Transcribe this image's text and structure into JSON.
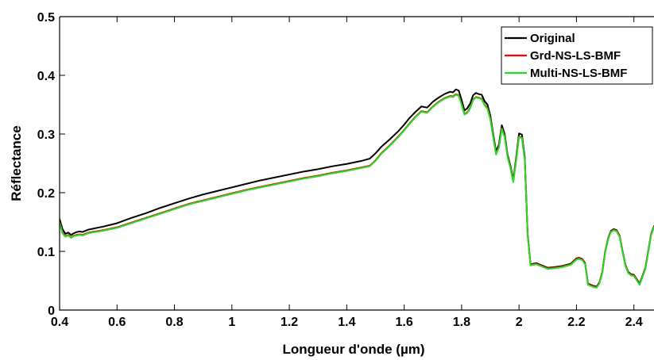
{
  "chart_data": {
    "type": "line",
    "title": "",
    "xlabel": "Longueur d'onde (µm)",
    "ylabel": "Réflectance",
    "xlim": [
      0.4,
      2.47
    ],
    "ylim": [
      0,
      0.5
    ],
    "xticks": [
      0.4,
      0.6,
      0.8,
      1.0,
      1.2,
      1.4,
      1.6,
      1.8,
      2.0,
      2.2,
      2.4
    ],
    "xtick_labels": [
      "0.4",
      "0.6",
      "0.8",
      "1",
      "1.2",
      "1.4",
      "1.6",
      "1.8",
      "2",
      "2.2",
      "2.4"
    ],
    "yticks": [
      0,
      0.1,
      0.2,
      0.3,
      0.4,
      0.5
    ],
    "ytick_labels": [
      "0",
      "0.1",
      "0.2",
      "0.3",
      "0.4",
      "0.5"
    ],
    "grid": false,
    "legend_position": "top-right",
    "series": [
      {
        "name": "Original",
        "color": "#000000",
        "x": [
          0.4,
          0.41,
          0.42,
          0.43,
          0.44,
          0.45,
          0.46,
          0.47,
          0.48,
          0.5,
          0.55,
          0.6,
          0.65,
          0.7,
          0.75,
          0.8,
          0.85,
          0.9,
          0.95,
          1.0,
          1.05,
          1.1,
          1.15,
          1.2,
          1.25,
          1.3,
          1.35,
          1.4,
          1.45,
          1.48,
          1.5,
          1.52,
          1.55,
          1.58,
          1.6,
          1.62,
          1.64,
          1.66,
          1.68,
          1.7,
          1.72,
          1.74,
          1.76,
          1.77,
          1.78,
          1.79,
          1.8,
          1.81,
          1.82,
          1.83,
          1.84,
          1.85,
          1.86,
          1.87,
          1.88,
          1.89,
          1.9,
          1.91,
          1.92,
          1.93,
          1.94,
          1.95,
          1.96,
          1.97,
          1.98,
          1.99,
          2.0,
          2.01,
          2.02,
          2.03,
          2.04,
          2.06,
          2.08,
          2.1,
          2.12,
          2.15,
          2.18,
          2.2,
          2.21,
          2.22,
          2.23,
          2.24,
          2.25,
          2.26,
          2.27,
          2.28,
          2.29,
          2.3,
          2.31,
          2.32,
          2.33,
          2.34,
          2.35,
          2.36,
          2.37,
          2.38,
          2.39,
          2.4,
          2.42,
          2.44,
          2.46,
          2.47
        ],
        "y": [
          0.155,
          0.138,
          0.13,
          0.132,
          0.128,
          0.131,
          0.133,
          0.134,
          0.133,
          0.137,
          0.142,
          0.148,
          0.157,
          0.165,
          0.174,
          0.182,
          0.19,
          0.197,
          0.203,
          0.209,
          0.215,
          0.221,
          0.226,
          0.231,
          0.236,
          0.24,
          0.245,
          0.249,
          0.254,
          0.258,
          0.267,
          0.278,
          0.291,
          0.305,
          0.316,
          0.328,
          0.338,
          0.347,
          0.345,
          0.355,
          0.362,
          0.368,
          0.372,
          0.371,
          0.376,
          0.374,
          0.358,
          0.34,
          0.344,
          0.352,
          0.366,
          0.37,
          0.368,
          0.367,
          0.356,
          0.35,
          0.331,
          0.3,
          0.27,
          0.282,
          0.315,
          0.3,
          0.265,
          0.246,
          0.222,
          0.26,
          0.301,
          0.299,
          0.26,
          0.13,
          0.078,
          0.08,
          0.076,
          0.072,
          0.073,
          0.075,
          0.079,
          0.088,
          0.089,
          0.087,
          0.08,
          0.045,
          0.043,
          0.041,
          0.04,
          0.047,
          0.065,
          0.1,
          0.122,
          0.135,
          0.138,
          0.136,
          0.127,
          0.102,
          0.078,
          0.065,
          0.061,
          0.06,
          0.045,
          0.072,
          0.13,
          0.143
        ],
        "label_x": 0.4
      },
      {
        "name": "Grd-NS-LS-BMF",
        "color": "#ff0000",
        "x": [
          0.4,
          0.41,
          0.42,
          0.43,
          0.44,
          0.45,
          0.46,
          0.47,
          0.48,
          0.5,
          0.55,
          0.6,
          0.65,
          0.7,
          0.75,
          0.8,
          0.85,
          0.9,
          0.95,
          1.0,
          1.05,
          1.1,
          1.15,
          1.2,
          1.25,
          1.3,
          1.35,
          1.4,
          1.45,
          1.48,
          1.5,
          1.52,
          1.55,
          1.58,
          1.6,
          1.62,
          1.64,
          1.66,
          1.68,
          1.7,
          1.72,
          1.74,
          1.76,
          1.77,
          1.78,
          1.79,
          1.8,
          1.81,
          1.82,
          1.83,
          1.84,
          1.85,
          1.86,
          1.87,
          1.88,
          1.89,
          1.9,
          1.91,
          1.92,
          1.93,
          1.94,
          1.95,
          1.96,
          1.97,
          1.98,
          1.99,
          2.0,
          2.01,
          2.02,
          2.03,
          2.04,
          2.06,
          2.08,
          2.1,
          2.12,
          2.15,
          2.18,
          2.2,
          2.21,
          2.22,
          2.23,
          2.24,
          2.25,
          2.26,
          2.27,
          2.28,
          2.29,
          2.3,
          2.31,
          2.32,
          2.33,
          2.34,
          2.35,
          2.36,
          2.37,
          2.38,
          2.39,
          2.4,
          2.42,
          2.44,
          2.46,
          2.47
        ],
        "y": [
          0.15,
          0.132,
          0.126,
          0.128,
          0.124,
          0.127,
          0.128,
          0.129,
          0.128,
          0.132,
          0.136,
          0.141,
          0.149,
          0.157,
          0.165,
          0.173,
          0.181,
          0.187,
          0.193,
          0.199,
          0.205,
          0.21,
          0.215,
          0.22,
          0.225,
          0.229,
          0.234,
          0.238,
          0.243,
          0.246,
          0.255,
          0.267,
          0.281,
          0.296,
          0.307,
          0.319,
          0.33,
          0.339,
          0.337,
          0.347,
          0.355,
          0.361,
          0.365,
          0.364,
          0.368,
          0.366,
          0.351,
          0.334,
          0.337,
          0.345,
          0.359,
          0.363,
          0.362,
          0.36,
          0.35,
          0.344,
          0.326,
          0.296,
          0.266,
          0.278,
          0.31,
          0.296,
          0.262,
          0.243,
          0.219,
          0.256,
          0.296,
          0.294,
          0.256,
          0.128,
          0.077,
          0.079,
          0.075,
          0.071,
          0.072,
          0.074,
          0.078,
          0.087,
          0.088,
          0.086,
          0.079,
          0.044,
          0.042,
          0.04,
          0.039,
          0.046,
          0.064,
          0.099,
          0.121,
          0.134,
          0.137,
          0.135,
          0.126,
          0.101,
          0.077,
          0.064,
          0.06,
          0.059,
          0.044,
          0.071,
          0.129,
          0.142
        ],
        "label_x": 0.4
      },
      {
        "name": "Multi-NS-LS-BMF",
        "color": "#22dd22",
        "x": [
          0.4,
          0.41,
          0.42,
          0.43,
          0.44,
          0.45,
          0.46,
          0.47,
          0.48,
          0.5,
          0.55,
          0.6,
          0.65,
          0.7,
          0.75,
          0.8,
          0.85,
          0.9,
          0.95,
          1.0,
          1.05,
          1.1,
          1.15,
          1.2,
          1.25,
          1.3,
          1.35,
          1.4,
          1.45,
          1.48,
          1.5,
          1.52,
          1.55,
          1.58,
          1.6,
          1.62,
          1.64,
          1.66,
          1.68,
          1.7,
          1.72,
          1.74,
          1.76,
          1.77,
          1.78,
          1.79,
          1.8,
          1.81,
          1.82,
          1.83,
          1.84,
          1.85,
          1.86,
          1.87,
          1.88,
          1.89,
          1.9,
          1.91,
          1.92,
          1.93,
          1.94,
          1.95,
          1.96,
          1.97,
          1.98,
          1.99,
          2.0,
          2.01,
          2.02,
          2.03,
          2.04,
          2.06,
          2.08,
          2.1,
          2.12,
          2.15,
          2.18,
          2.2,
          2.21,
          2.22,
          2.23,
          2.24,
          2.25,
          2.26,
          2.27,
          2.28,
          2.29,
          2.3,
          2.31,
          2.32,
          2.33,
          2.34,
          2.35,
          2.36,
          2.37,
          2.38,
          2.39,
          2.4,
          2.42,
          2.44,
          2.46,
          2.47
        ],
        "y": [
          0.149,
          0.131,
          0.125,
          0.127,
          0.123,
          0.126,
          0.127,
          0.128,
          0.127,
          0.131,
          0.135,
          0.14,
          0.148,
          0.156,
          0.164,
          0.172,
          0.18,
          0.186,
          0.192,
          0.198,
          0.204,
          0.209,
          0.214,
          0.219,
          0.224,
          0.228,
          0.233,
          0.237,
          0.242,
          0.245,
          0.254,
          0.266,
          0.28,
          0.295,
          0.306,
          0.318,
          0.329,
          0.338,
          0.336,
          0.346,
          0.354,
          0.36,
          0.364,
          0.363,
          0.367,
          0.365,
          0.35,
          0.333,
          0.336,
          0.344,
          0.358,
          0.362,
          0.361,
          0.359,
          0.349,
          0.343,
          0.325,
          0.295,
          0.265,
          0.277,
          0.309,
          0.295,
          0.261,
          0.242,
          0.218,
          0.255,
          0.295,
          0.293,
          0.255,
          0.127,
          0.076,
          0.078,
          0.074,
          0.07,
          0.071,
          0.073,
          0.077,
          0.086,
          0.087,
          0.085,
          0.078,
          0.043,
          0.041,
          0.039,
          0.038,
          0.045,
          0.063,
          0.098,
          0.12,
          0.133,
          0.136,
          0.134,
          0.125,
          0.1,
          0.076,
          0.063,
          0.059,
          0.058,
          0.043,
          0.07,
          0.128,
          0.141
        ],
        "label_x": 0.4
      }
    ]
  }
}
